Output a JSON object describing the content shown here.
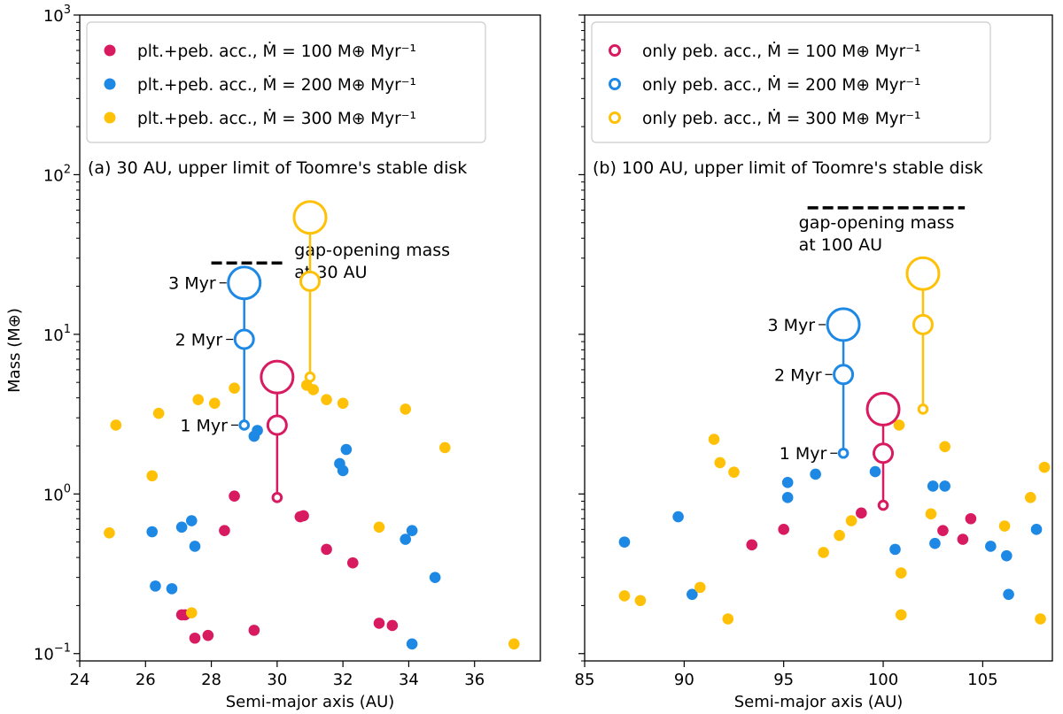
{
  "figure": {
    "ylabel": "Mass (M⊕)",
    "y_scale": "log",
    "ylim": [
      0.09,
      1000
    ],
    "y_ticks": [
      {
        "value": 0.1,
        "base": "10",
        "exp": "−1"
      },
      {
        "value": 1,
        "base": "10",
        "exp": "0"
      },
      {
        "value": 10,
        "base": "10",
        "exp": "1"
      },
      {
        "value": 100,
        "base": "10",
        "exp": "2"
      },
      {
        "value": 1000,
        "base": "10",
        "exp": "3"
      }
    ]
  },
  "colors": {
    "red": "#d81b60",
    "blue": "#1e88e5",
    "yellow": "#ffc107"
  },
  "chart_data": [
    {
      "type": "scatter",
      "panel": "a",
      "title": "(a) 30 AU, upper limit of Toomre's stable disk",
      "xlabel": "Semi-major axis (AU)",
      "xlim": [
        24,
        38
      ],
      "x_ticks": [
        24,
        26,
        28,
        30,
        32,
        34,
        36
      ],
      "legend": {
        "location": "top-left",
        "entries": [
          {
            "label": "plt.+peb. acc., Ṁ = 100 M⊕ Myr⁻¹",
            "color": "red",
            "marker": "filled"
          },
          {
            "label": "plt.+peb. acc., Ṁ = 200 M⊕ Myr⁻¹",
            "color": "blue",
            "marker": "filled"
          },
          {
            "label": "plt.+peb. acc., Ṁ = 300 M⊕ Myr⁻¹",
            "color": "yellow",
            "marker": "filled"
          }
        ]
      },
      "gap_line": {
        "x_range": [
          28,
          30.2
        ],
        "mass": 28,
        "label_line1": "gap-opening mass",
        "label_line2": "at 30 AU"
      },
      "tracks": [
        {
          "color": "blue",
          "x": 29,
          "masses": [
            2.7,
            9.3,
            21
          ]
        },
        {
          "color": "red",
          "x": 30,
          "masses": [
            0.95,
            2.7,
            5.4
          ]
        },
        {
          "color": "yellow",
          "x": 31,
          "masses": [
            5.4,
            21.5,
            54
          ]
        }
      ],
      "time_labels": [
        {
          "label": "1 Myr",
          "x": 29,
          "mass": 2.7
        },
        {
          "label": "2 Myr",
          "x": 29,
          "mass": 9.3
        },
        {
          "label": "3 Myr",
          "x": 29,
          "mass": 21
        }
      ],
      "series": [
        {
          "name": "plt.+peb. acc., Ṁ = 100 M⊕ Myr⁻¹",
          "color": "red",
          "points": [
            [
              27.1,
              0.175
            ],
            [
              27.2,
              0.175
            ],
            [
              27.5,
              0.125
            ],
            [
              27.9,
              0.13
            ],
            [
              28.4,
              0.59
            ],
            [
              28.7,
              0.97
            ],
            [
              29.3,
              0.14
            ],
            [
              30.7,
              0.72
            ],
            [
              30.8,
              0.73
            ],
            [
              31.5,
              0.45
            ],
            [
              32.3,
              0.37
            ],
            [
              33.1,
              0.155
            ],
            [
              33.5,
              0.15
            ]
          ]
        },
        {
          "name": "plt.+peb. acc., Ṁ = 200 M⊕ Myr⁻¹",
          "color": "blue",
          "points": [
            [
              26.2,
              0.58
            ],
            [
              26.3,
              0.265
            ],
            [
              26.8,
              0.255
            ],
            [
              27.1,
              0.62
            ],
            [
              27.4,
              0.68
            ],
            [
              27.5,
              0.47
            ],
            [
              29.3,
              2.3
            ],
            [
              29.4,
              2.5
            ],
            [
              31.9,
              1.55
            ],
            [
              32.0,
              1.4
            ],
            [
              32.1,
              1.9
            ],
            [
              33.9,
              0.52
            ],
            [
              34.1,
              0.59
            ],
            [
              34.1,
              0.115
            ],
            [
              34.8,
              0.3
            ]
          ]
        },
        {
          "name": "plt.+peb. acc., Ṁ = 300 M⊕ Myr⁻¹",
          "color": "yellow",
          "points": [
            [
              24.9,
              0.57
            ],
            [
              25.1,
              2.7
            ],
            [
              26.2,
              1.3
            ],
            [
              26.4,
              3.2
            ],
            [
              27.4,
              0.18
            ],
            [
              27.6,
              3.9
            ],
            [
              28.1,
              3.7
            ],
            [
              28.7,
              4.6
            ],
            [
              30.9,
              4.8
            ],
            [
              31.1,
              4.5
            ],
            [
              31.5,
              3.9
            ],
            [
              32.0,
              3.7
            ],
            [
              33.1,
              0.62
            ],
            [
              33.9,
              3.4
            ],
            [
              35.1,
              1.95
            ],
            [
              37.2,
              0.115
            ]
          ]
        }
      ]
    },
    {
      "type": "scatter",
      "panel": "b",
      "title": "(b) 100 AU, upper limit of Toomre's stable disk",
      "xlabel": "Semi-major axis (AU)",
      "xlim": [
        85,
        108.5
      ],
      "x_ticks": [
        85,
        90,
        95,
        100,
        105
      ],
      "legend": {
        "location": "top-left",
        "entries": [
          {
            "label": "only peb. acc., Ṁ = 100 M⊕ Myr⁻¹",
            "color": "red",
            "marker": "open"
          },
          {
            "label": "only peb. acc., Ṁ = 200 M⊕ Myr⁻¹",
            "color": "blue",
            "marker": "open"
          },
          {
            "label": "only peb. acc., Ṁ = 300 M⊕ Myr⁻¹",
            "color": "yellow",
            "marker": "open"
          }
        ]
      },
      "gap_line": {
        "x_range": [
          96.2,
          104.1
        ],
        "mass": 62,
        "label_line1": "gap-opening mass",
        "label_line2": "at 100 AU"
      },
      "tracks": [
        {
          "color": "blue",
          "x": 98,
          "masses": [
            1.8,
            5.6,
            11.5
          ]
        },
        {
          "color": "red",
          "x": 100,
          "masses": [
            0.85,
            1.8,
            3.4
          ]
        },
        {
          "color": "yellow",
          "x": 102,
          "masses": [
            3.4,
            11.5,
            24
          ]
        }
      ],
      "time_labels": [
        {
          "label": "1 Myr",
          "x": 98,
          "mass": 1.8
        },
        {
          "label": "2 Myr",
          "x": 98,
          "mass": 5.6
        },
        {
          "label": "3 Myr",
          "x": 98,
          "mass": 11.5
        }
      ],
      "series": [
        {
          "name": "only peb. acc., Ṁ = 100 M⊕ Myr⁻¹",
          "color": "red",
          "points": [
            [
              93.4,
              0.48
            ],
            [
              95.0,
              0.6
            ],
            [
              98.9,
              0.76
            ],
            [
              103.0,
              0.59
            ],
            [
              104.0,
              0.52
            ],
            [
              104.4,
              0.7
            ]
          ]
        },
        {
          "name": "only peb. acc., Ṁ = 200 M⊕ Myr⁻¹",
          "color": "blue",
          "points": [
            [
              87.0,
              0.5
            ],
            [
              89.7,
              0.72
            ],
            [
              90.4,
              0.235
            ],
            [
              95.2,
              1.18
            ],
            [
              95.2,
              0.95
            ],
            [
              96.6,
              1.33
            ],
            [
              99.6,
              1.38
            ],
            [
              100.6,
              0.45
            ],
            [
              102.5,
              1.12
            ],
            [
              102.6,
              0.49
            ],
            [
              103.1,
              1.12
            ],
            [
              105.4,
              0.47
            ],
            [
              106.2,
              0.41
            ],
            [
              106.3,
              0.235
            ],
            [
              107.7,
              0.6
            ]
          ]
        },
        {
          "name": "only peb. acc., Ṁ = 300 M⊕ Myr⁻¹",
          "color": "yellow",
          "points": [
            [
              87.0,
              0.23
            ],
            [
              87.8,
              0.215
            ],
            [
              90.8,
              0.26
            ],
            [
              91.5,
              2.2
            ],
            [
              91.8,
              1.57
            ],
            [
              92.2,
              0.165
            ],
            [
              92.5,
              1.37
            ],
            [
              97.0,
              0.43
            ],
            [
              97.8,
              0.55
            ],
            [
              98.4,
              0.68
            ],
            [
              100.8,
              2.7
            ],
            [
              100.9,
              0.32
            ],
            [
              100.9,
              0.175
            ],
            [
              102.4,
              0.75
            ],
            [
              103.1,
              1.98
            ],
            [
              106.1,
              0.63
            ],
            [
              107.4,
              0.95
            ],
            [
              107.9,
              0.165
            ],
            [
              108.1,
              1.47
            ]
          ]
        }
      ]
    }
  ]
}
